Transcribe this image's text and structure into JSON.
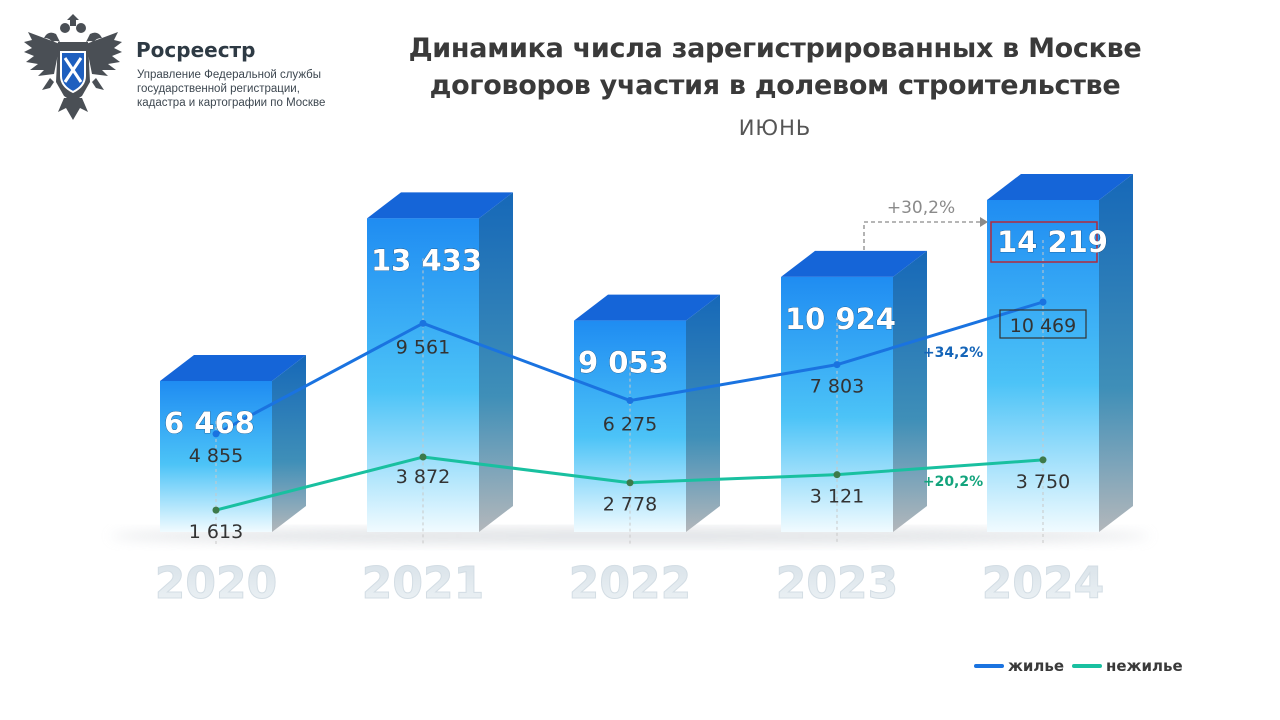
{
  "header": {
    "brand": "Росреестр",
    "subtitle_lines": [
      "Управление Федеральной службы",
      "государственной регистрации,",
      "кадастра и картографии по Москве"
    ],
    "title_lines": [
      "Динамика числа зарегистрированных в Москве",
      "договоров участия в долевом строительстве"
    ],
    "period": "ИЮНЬ"
  },
  "colors": {
    "residential": "#1a73e0",
    "nonresidential": "#19c0a0",
    "bar_top": "#1565d8",
    "bar_side": "#1f6fb6",
    "total_highlight_border": "#b22a3c",
    "growth_arrow": "#8a8a8a"
  },
  "chart_data": {
    "type": "bar",
    "categories": [
      "2020",
      "2021",
      "2022",
      "2023",
      "2024"
    ],
    "totals": [
      6468,
      13433,
      9053,
      10924,
      14219
    ],
    "total_labels": [
      "6 468",
      "13 433",
      "9 053",
      "10 924",
      "14 219"
    ],
    "series": [
      {
        "name": "жилье",
        "values": [
          4855,
          9561,
          6275,
          7803,
          10469
        ],
        "labels": [
          "4 855",
          "9 561",
          "6 275",
          "7 803",
          "10 469"
        ],
        "color": "#1a73e0"
      },
      {
        "name": "нежилье",
        "values": [
          1613,
          3872,
          2778,
          3121,
          3750
        ],
        "labels": [
          "1 613",
          "3 872",
          "2 778",
          "3 121",
          "3 750"
        ],
        "color": "#19c0a0"
      }
    ],
    "annotations": {
      "total_growth": "+30,2%",
      "residential_growth": "+34,2%",
      "nonresidential_growth": "+20,2%"
    },
    "highlight_last_labels": true,
    "grid": false,
    "legend_position": "bottom-right"
  }
}
